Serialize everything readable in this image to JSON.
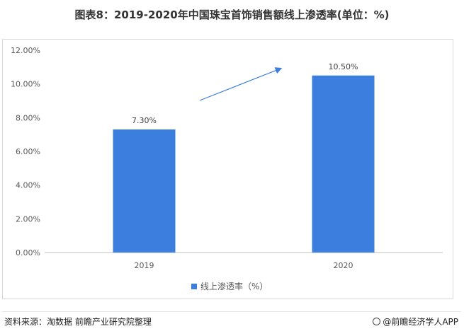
{
  "title": "图表8：2019-2020年中国珠宝首饰销售额线上渗透率(单位：%)",
  "chart_data": {
    "type": "bar",
    "categories": [
      "2019",
      "2020"
    ],
    "series": [
      {
        "name": "线上渗透率（%）",
        "values": [
          7.3,
          10.5
        ],
        "color": "#3b7ede"
      }
    ],
    "data_labels": [
      "7.30%",
      "10.50%"
    ],
    "y_ticks": [
      "0.00%",
      "2.00%",
      "4.00%",
      "6.00%",
      "8.00%",
      "10.00%",
      "12.00%"
    ],
    "ylim": [
      0,
      12
    ],
    "grid": false,
    "legend_position": "bottom",
    "arrow_color": "#3b7ede"
  },
  "footer": {
    "source": "资料来源：淘数据 前瞻产业研究院整理",
    "brand": "@前瞻经济学人APP"
  }
}
